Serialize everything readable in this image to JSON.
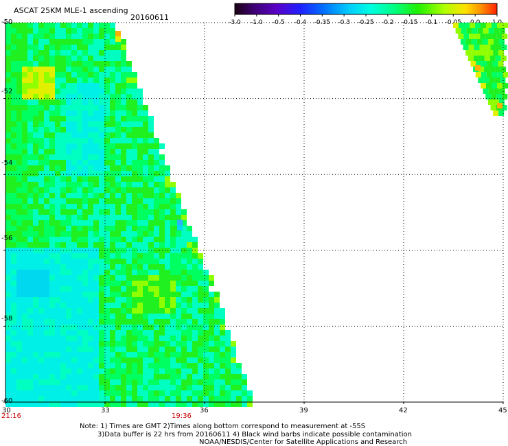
{
  "header": {
    "title": "ASCAT 25KM MLE-1 ascending",
    "date": "20160611"
  },
  "colorbar": {
    "labels": [
      "-3.0",
      "-1.0",
      "-0.5",
      "-0.4",
      "-0.35",
      "-0.3",
      "-0.25",
      "-0.2",
      "-0.15",
      "-0.1",
      "-0.05",
      "0.0",
      "1.0"
    ],
    "colors": [
      "#1a0010",
      "#3c0070",
      "#5a00c8",
      "#2020ff",
      "#0070ff",
      "#00c8ff",
      "#00ffe0",
      "#00ff80",
      "#20f000",
      "#b0ff00",
      "#ffe000",
      "#ff9000",
      "#ff2000"
    ]
  },
  "map": {
    "lat_labels": [
      "-50",
      "-52",
      "-54",
      "-56",
      "-58",
      "-60"
    ],
    "lon_labels": [
      "30",
      "33",
      "36",
      "39",
      "42",
      "45"
    ],
    "time_labels": [
      {
        "text": "21:16"
      },
      {
        "text": "19:36"
      }
    ]
  },
  "notes": [
    "Note: 1) Times are GMT 2)Times along bottom correspond to measurement at -55S",
    "3)Data buffer is 22 hrs from 20160611 4) Black wind barbs indicate possible contamination",
    "NOAA/NESDIS/Center for Satellite Applications and Research"
  ]
}
